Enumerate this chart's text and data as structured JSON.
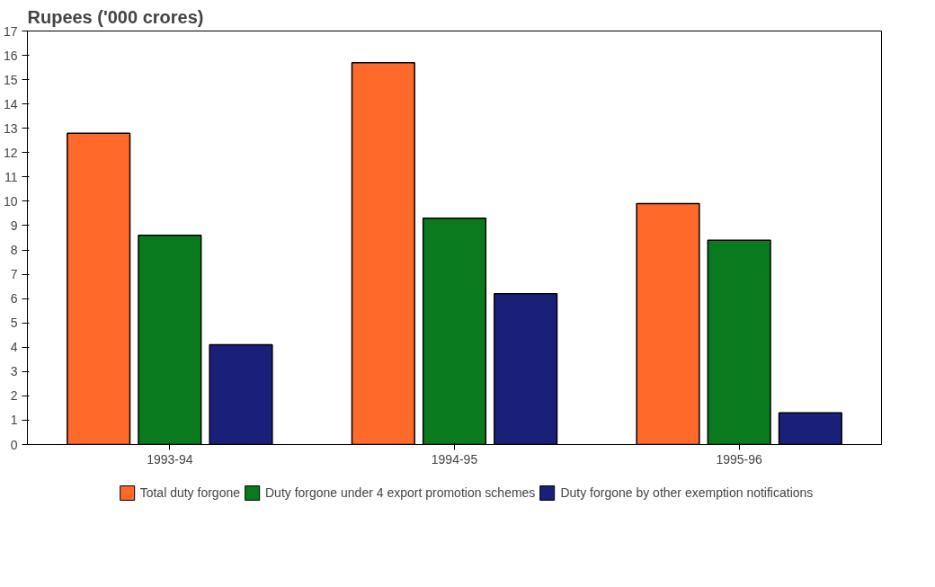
{
  "chart_data": {
    "type": "bar",
    "ylabel": "Rupees ('000 crores)",
    "categories": [
      "1993-94",
      "1994-95",
      "1995-96"
    ],
    "series": [
      {
        "name": "Total duty forgone",
        "color": "#ff6a2a",
        "values": [
          12.8,
          15.7,
          9.9
        ]
      },
      {
        "name": "Duty forgone under 4 export promotion schemes",
        "color": "#0a7a1e",
        "values": [
          8.6,
          9.3,
          8.4
        ]
      },
      {
        "name": "Duty forgone by other exemption notifications",
        "color": "#1a1f7a",
        "values": [
          4.1,
          6.2,
          1.3
        ]
      }
    ],
    "ylim": [
      0,
      17
    ],
    "yticks": [
      0,
      1,
      2,
      3,
      4,
      5,
      6,
      7,
      8,
      9,
      10,
      11,
      12,
      13,
      14,
      15,
      16,
      17
    ],
    "grid": false,
    "legend": "bottom"
  }
}
